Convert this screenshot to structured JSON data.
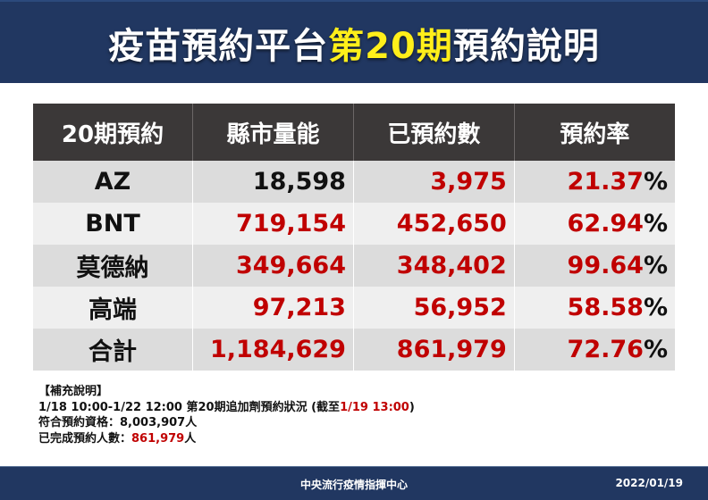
{
  "header": {
    "title_prefix": "疫苗預約平台",
    "title_highlight": "第20期",
    "title_suffix": "預約說明",
    "highlight_color": "#ffef1a",
    "background_color": "#213761"
  },
  "table": {
    "columns": [
      "20期預約",
      "縣市量能",
      "已預約數",
      "預約率"
    ],
    "rows": [
      {
        "name": "AZ",
        "capacity": "18,598",
        "booked": "3,975",
        "rate": "21.37",
        "pct": "%",
        "capacity_red": false
      },
      {
        "name": "BNT",
        "capacity": "719,154",
        "booked": "452,650",
        "rate": "62.94",
        "pct": "%",
        "capacity_red": true
      },
      {
        "name": "莫德納",
        "capacity": "349,664",
        "booked": "348,402",
        "rate": "99.64",
        "pct": "%",
        "capacity_red": true
      },
      {
        "name": "高端",
        "capacity": "97,213",
        "booked": "56,952",
        "rate": "58.58",
        "pct": "%",
        "capacity_red": true
      },
      {
        "name": "合計",
        "capacity": "1,184,629",
        "booked": "861,979",
        "rate": "72.76",
        "pct": "%",
        "capacity_red": true
      }
    ],
    "header_bg": "#3b3838",
    "value_color": "#c00000"
  },
  "notes": {
    "heading": "【補充說明】",
    "line1_prefix": "1/18 10:00-1/22 12:00 第20期追加劑預約狀況 (截至",
    "line1_highlight": "1/19 13:00",
    "line1_suffix": ")",
    "line2_label": "符合預約資格：",
    "line2_value": "8,003,907人",
    "line3_label": "已完成預約人數：",
    "line3_value": "861,979",
    "line3_unit": "人"
  },
  "footer": {
    "organization": "中央流行疫情指揮中心",
    "date": "2022/01/19"
  }
}
